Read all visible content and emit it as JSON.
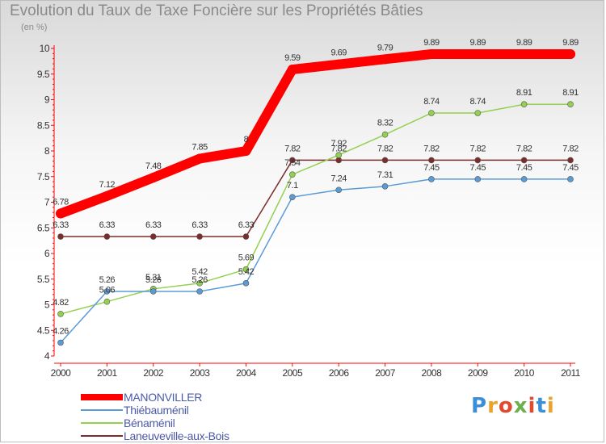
{
  "header": {
    "title": "Evolution du Taux de Taxe Foncière sur les Propriétés Bâties",
    "unit": "(en %)"
  },
  "logo": {
    "text": "Proxiti",
    "colors": [
      "#3a8fd8",
      "#e9a22a",
      "#e14a2d",
      "#6ab04c",
      "#e14a2d",
      "#3a8fd8",
      "#e9a22a"
    ]
  },
  "chart_data": {
    "type": "line",
    "title": "Evolution du Taux de Taxe Foncière sur les Propriétés Bâties",
    "ylabel": "(en %)",
    "xlabel": "",
    "x": [
      2000,
      2001,
      2002,
      2003,
      2004,
      2005,
      2006,
      2007,
      2008,
      2009,
      2010,
      2011
    ],
    "ylim": [
      4,
      10
    ],
    "yticks": [
      4,
      4.5,
      5,
      5.5,
      6,
      6.5,
      7,
      7.5,
      8,
      8.5,
      9,
      9.5,
      10
    ],
    "grid": false,
    "legend": "bottom-left",
    "series": [
      {
        "name": "MANONVILLER",
        "color": "#ff0000",
        "values": [
          6.78,
          7.12,
          7.48,
          7.85,
          8,
          9.59,
          9.69,
          9.79,
          9.89,
          9.89,
          9.89,
          9.89
        ],
        "labels": [
          "6.78",
          "7.12",
          "7.48",
          "7.85",
          "8",
          "9.59",
          "9.69",
          "9.79",
          "9.89",
          "9.89",
          "9.89",
          "9.89"
        ]
      },
      {
        "name": "Thiébauménil",
        "color": "#5b9bd5",
        "values": [
          4.26,
          5.26,
          5.26,
          5.26,
          5.42,
          7.1,
          7.24,
          7.31,
          7.45,
          7.45,
          7.45,
          7.45
        ],
        "labels": [
          "4.26",
          "5.26",
          "5.26",
          "5.26",
          "5.42",
          "7.1",
          "7.24",
          "7.31",
          "7.45",
          "7.45",
          "7.45",
          "7.45"
        ]
      },
      {
        "name": "Bénaménil",
        "color": "#92d050",
        "values": [
          4.82,
          5.06,
          5.31,
          5.42,
          5.69,
          7.54,
          7.92,
          8.32,
          8.74,
          8.74,
          8.91,
          8.91
        ],
        "labels": [
          "4.82",
          "5.06",
          "5.31",
          "5.42",
          "5.69",
          "7.54",
          "7.92",
          "8.32",
          "8.74",
          "8.74",
          "8.91",
          "8.91"
        ]
      },
      {
        "name": "Laneuveville-aux-Bois",
        "color": "#7b2c2c",
        "values": [
          6.33,
          6.33,
          6.33,
          6.33,
          6.33,
          7.82,
          7.82,
          7.82,
          7.82,
          7.82,
          7.82,
          7.82
        ],
        "labels": [
          "6.33",
          "6.33",
          "6.33",
          "6.33",
          "6.33",
          "7.82",
          "7.82",
          "7.82",
          "7.82",
          "7.82",
          "7.82",
          "7.82"
        ]
      }
    ]
  }
}
